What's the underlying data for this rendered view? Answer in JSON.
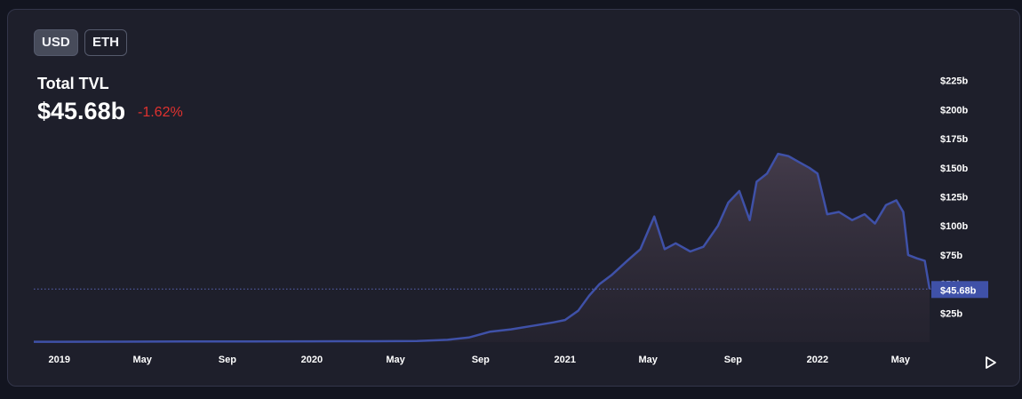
{
  "toggle": {
    "usd_label": "USD",
    "eth_label": "ETH",
    "selected": "USD"
  },
  "metric": {
    "label": "Total TVL",
    "value": "$45.68b",
    "change": "-1.62%"
  },
  "colors": {
    "line": "#3f51a8",
    "change_negative": "#e0322f",
    "background": "#1e1f2b",
    "current_marker": "#3f51a8"
  },
  "controls": {
    "play_icon": "play-icon"
  },
  "chart_data": {
    "type": "area",
    "title": "Total TVL",
    "x": [
      "2019-01-01",
      "2019-04-01",
      "2019-07-01",
      "2019-10-01",
      "2020-01-01",
      "2020-04-01",
      "2020-06-01",
      "2020-07-15",
      "2020-08-15",
      "2020-09-15",
      "2020-10-15",
      "2020-11-15",
      "2020-12-15",
      "2021-01-01",
      "2021-01-20",
      "2021-02-05",
      "2021-02-20",
      "2021-03-10",
      "2021-04-01",
      "2021-04-20",
      "2021-05-10",
      "2021-05-25",
      "2021-06-10",
      "2021-07-01",
      "2021-07-20",
      "2021-08-10",
      "2021-08-25",
      "2021-09-10",
      "2021-09-25",
      "2021-10-05",
      "2021-10-20",
      "2021-11-05",
      "2021-11-20",
      "2021-12-05",
      "2021-12-20",
      "2022-01-01",
      "2022-01-15",
      "2022-02-01",
      "2022-02-20",
      "2022-03-10",
      "2022-03-25",
      "2022-04-10",
      "2022-04-25",
      "2022-05-05",
      "2022-05-12",
      "2022-05-25",
      "2022-06-05",
      "2022-06-12"
    ],
    "y": [
      0.3,
      0.4,
      0.5,
      0.6,
      0.7,
      0.8,
      1.0,
      2.0,
      4.0,
      9.0,
      11.0,
      14.0,
      17.0,
      19.0,
      27.0,
      40.0,
      50.0,
      58.0,
      70.0,
      80.0,
      108.0,
      80.0,
      85.0,
      78.0,
      82.0,
      100.0,
      120.0,
      130.0,
      105.0,
      138.0,
      145.0,
      162.0,
      160.0,
      155.0,
      150.0,
      145.0,
      110.0,
      112.0,
      105.0,
      110.0,
      102.0,
      118.0,
      122.0,
      112.0,
      75.0,
      72.0,
      70.0,
      45.68
    ],
    "y_ticks": [
      "$25b",
      "$50b",
      "$75b",
      "$100b",
      "$125b",
      "$150b",
      "$175b",
      "$200b",
      "$225b"
    ],
    "x_tick_labels": [
      "2019",
      "May",
      "Sep",
      "2020",
      "May",
      "Sep",
      "2021",
      "May",
      "Sep",
      "2022",
      "May"
    ],
    "x_tick_dates": [
      "2019-01-01",
      "2019-05-01",
      "2019-09-01",
      "2020-01-01",
      "2020-05-01",
      "2020-09-01",
      "2021-01-01",
      "2021-05-01",
      "2021-09-01",
      "2022-01-01",
      "2022-05-01"
    ],
    "current_label": "$45.68b",
    "current_value": 45.68,
    "ylim": [
      0,
      225
    ],
    "grid": false
  }
}
